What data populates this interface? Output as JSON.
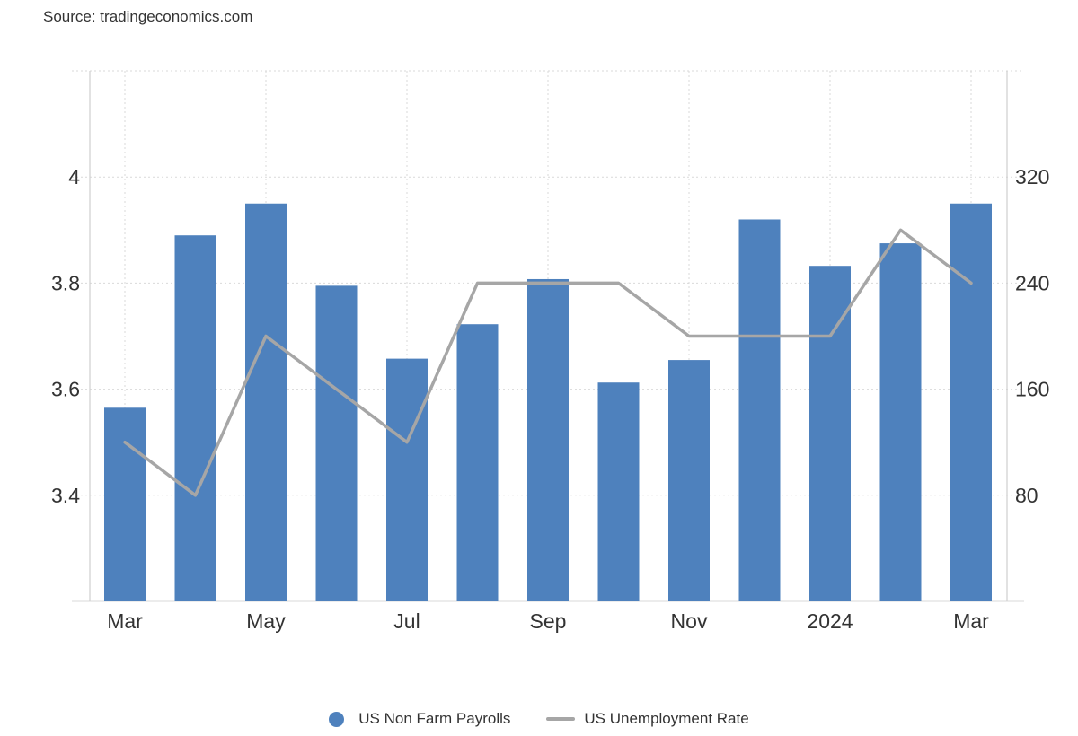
{
  "source": "Source: tradingeconomics.com",
  "colors": {
    "bars": "#4e81bd",
    "line": "#a6a6a6",
    "grid": "#d9d9d9",
    "axis": "#cfcfcf"
  },
  "chart_data": {
    "type": "bar",
    "x_ticks": [
      "Mar",
      "May",
      "Jul",
      "Sep",
      "Nov",
      "2024",
      "Mar"
    ],
    "left_axis": {
      "ticks": [
        "3.4",
        "3.6",
        "3.8",
        "4"
      ],
      "ylim": [
        3.2,
        4.2
      ]
    },
    "right_axis": {
      "ticks": [
        "80",
        "160",
        "240",
        "320"
      ],
      "ylim": [
        0,
        400
      ]
    },
    "categories": [
      "2023-03",
      "2023-04",
      "2023-05",
      "2023-06",
      "2023-07",
      "2023-08",
      "2023-09",
      "2023-10",
      "2023-11",
      "2023-12",
      "2024-01",
      "2024-02",
      "2024-03"
    ],
    "series": [
      {
        "name": "US Non Farm Payrolls",
        "type": "bar",
        "axis": "right",
        "values": [
          146,
          276,
          300,
          238,
          183,
          209,
          243,
          165,
          182,
          288,
          253,
          270,
          300
        ]
      },
      {
        "name": "US Unemployment Rate",
        "type": "line",
        "axis": "left",
        "values": [
          3.5,
          3.4,
          3.7,
          3.6,
          3.5,
          3.8,
          3.8,
          3.8,
          3.7,
          3.7,
          3.7,
          3.9,
          3.8
        ]
      }
    ],
    "grid": true,
    "legend": "bottom-center"
  }
}
